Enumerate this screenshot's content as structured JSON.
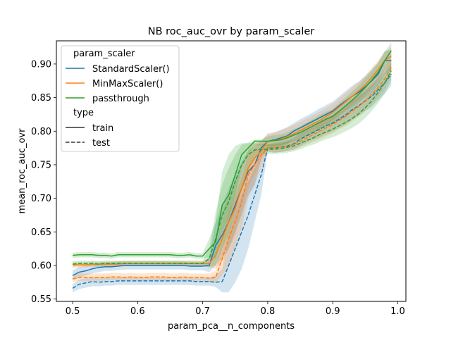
{
  "chart_data": {
    "type": "line",
    "title": "NB roc_auc_ovr by param_scaler",
    "xlabel": "param_pca__n_components",
    "ylabel": "mean_roc_auc_ovr",
    "xlim": [
      0.475,
      1.0125
    ],
    "ylim": [
      0.5465,
      0.9345
    ],
    "xticks": [
      "0.5",
      "0.6",
      "0.7",
      "0.8",
      "0.9",
      "1.0"
    ],
    "yticks": [
      "0.55",
      "0.60",
      "0.65",
      "0.70",
      "0.75",
      "0.80",
      "0.85",
      "0.90"
    ],
    "grid": false,
    "legend": {
      "placement": "upper-left",
      "hue_title": "param_scaler",
      "style_title": "type",
      "style_entries": [
        {
          "label": "train",
          "dash": "solid"
        },
        {
          "label": "test",
          "dash": "dashed"
        }
      ]
    },
    "x": [
      0.5,
      0.51,
      0.52,
      0.53,
      0.54,
      0.55,
      0.56,
      0.57,
      0.58,
      0.59,
      0.6,
      0.61,
      0.62,
      0.63,
      0.64,
      0.65,
      0.66,
      0.67,
      0.68,
      0.69,
      0.7,
      0.71,
      0.72,
      0.73,
      0.74,
      0.75,
      0.76,
      0.77,
      0.78,
      0.79,
      0.8,
      0.81,
      0.82,
      0.83,
      0.84,
      0.85,
      0.86,
      0.87,
      0.88,
      0.89,
      0.9,
      0.91,
      0.92,
      0.93,
      0.94,
      0.95,
      0.96,
      0.97,
      0.98,
      0.99
    ],
    "series": [
      {
        "name": "StandardScaler()",
        "color": "#1f77b4",
        "train": [
          0.585,
          0.59,
          0.592,
          0.595,
          0.597,
          0.598,
          0.598,
          0.599,
          0.6,
          0.6,
          0.6,
          0.6,
          0.6,
          0.6,
          0.6,
          0.6,
          0.6,
          0.6,
          0.599,
          0.599,
          0.599,
          0.6,
          0.63,
          0.645,
          0.665,
          0.69,
          0.715,
          0.74,
          0.75,
          0.775,
          0.785,
          0.787,
          0.79,
          0.793,
          0.8,
          0.805,
          0.81,
          0.815,
          0.82,
          0.825,
          0.83,
          0.838,
          0.845,
          0.852,
          0.858,
          0.866,
          0.875,
          0.885,
          0.905,
          0.905
        ],
        "train_lo": [
          0.578,
          0.582,
          0.585,
          0.588,
          0.59,
          0.592,
          0.592,
          0.593,
          0.594,
          0.594,
          0.594,
          0.594,
          0.594,
          0.594,
          0.594,
          0.594,
          0.594,
          0.594,
          0.593,
          0.593,
          0.593,
          0.59,
          0.6,
          0.61,
          0.625,
          0.65,
          0.675,
          0.705,
          0.72,
          0.76,
          0.775,
          0.776,
          0.778,
          0.781,
          0.788,
          0.792,
          0.797,
          0.802,
          0.806,
          0.811,
          0.816,
          0.823,
          0.83,
          0.836,
          0.842,
          0.85,
          0.858,
          0.868,
          0.885,
          0.89
        ],
        "train_hi": [
          0.592,
          0.598,
          0.6,
          0.602,
          0.604,
          0.605,
          0.605,
          0.606,
          0.606,
          0.606,
          0.606,
          0.606,
          0.606,
          0.606,
          0.606,
          0.606,
          0.606,
          0.606,
          0.605,
          0.605,
          0.605,
          0.612,
          0.665,
          0.69,
          0.715,
          0.735,
          0.755,
          0.77,
          0.778,
          0.785,
          0.795,
          0.798,
          0.802,
          0.806,
          0.812,
          0.818,
          0.823,
          0.828,
          0.834,
          0.839,
          0.844,
          0.852,
          0.86,
          0.868,
          0.874,
          0.882,
          0.892,
          0.902,
          0.92,
          0.92
        ],
        "test": [
          0.566,
          0.572,
          0.574,
          0.576,
          0.575,
          0.576,
          0.576,
          0.577,
          0.577,
          0.577,
          0.577,
          0.577,
          0.577,
          0.577,
          0.577,
          0.577,
          0.577,
          0.577,
          0.577,
          0.576,
          0.576,
          0.576,
          0.575,
          0.576,
          0.6,
          0.625,
          0.65,
          0.675,
          0.705,
          0.735,
          0.775,
          0.775,
          0.776,
          0.778,
          0.781,
          0.788,
          0.793,
          0.798,
          0.803,
          0.808,
          0.812,
          0.818,
          0.824,
          0.832,
          0.838,
          0.845,
          0.852,
          0.862,
          0.872,
          0.885
        ],
        "test_lo": [
          0.56,
          0.565,
          0.567,
          0.569,
          0.569,
          0.57,
          0.57,
          0.571,
          0.571,
          0.571,
          0.571,
          0.571,
          0.571,
          0.571,
          0.571,
          0.571,
          0.571,
          0.571,
          0.571,
          0.57,
          0.57,
          0.57,
          0.568,
          0.56,
          0.56,
          0.575,
          0.595,
          0.625,
          0.665,
          0.705,
          0.77,
          0.768,
          0.769,
          0.771,
          0.773,
          0.778,
          0.783,
          0.787,
          0.791,
          0.796,
          0.8,
          0.805,
          0.81,
          0.817,
          0.823,
          0.83,
          0.836,
          0.846,
          0.856,
          0.868
        ],
        "test_hi": [
          0.572,
          0.579,
          0.581,
          0.583,
          0.582,
          0.583,
          0.583,
          0.583,
          0.583,
          0.583,
          0.583,
          0.583,
          0.583,
          0.583,
          0.583,
          0.583,
          0.583,
          0.583,
          0.583,
          0.582,
          0.582,
          0.582,
          0.585,
          0.595,
          0.645,
          0.68,
          0.705,
          0.725,
          0.745,
          0.765,
          0.78,
          0.782,
          0.784,
          0.786,
          0.79,
          0.798,
          0.803,
          0.809,
          0.815,
          0.82,
          0.825,
          0.831,
          0.838,
          0.846,
          0.853,
          0.86,
          0.868,
          0.878,
          0.888,
          0.9
        ]
      },
      {
        "name": "MinMaxScaler()",
        "color": "#ff7f0e",
        "train": [
          0.601,
          0.601,
          0.601,
          0.602,
          0.602,
          0.602,
          0.602,
          0.602,
          0.603,
          0.603,
          0.603,
          0.603,
          0.603,
          0.603,
          0.603,
          0.603,
          0.603,
          0.603,
          0.603,
          0.603,
          0.603,
          0.603,
          0.615,
          0.64,
          0.665,
          0.685,
          0.715,
          0.745,
          0.76,
          0.77,
          0.785,
          0.786,
          0.788,
          0.792,
          0.796,
          0.801,
          0.806,
          0.811,
          0.816,
          0.822,
          0.828,
          0.836,
          0.844,
          0.852,
          0.86,
          0.869,
          0.88,
          0.892,
          0.905,
          0.912
        ],
        "train_lo": [
          0.597,
          0.597,
          0.597,
          0.598,
          0.598,
          0.598,
          0.598,
          0.598,
          0.599,
          0.599,
          0.599,
          0.599,
          0.599,
          0.599,
          0.599,
          0.599,
          0.599,
          0.599,
          0.599,
          0.599,
          0.599,
          0.597,
          0.595,
          0.605,
          0.625,
          0.645,
          0.68,
          0.715,
          0.735,
          0.755,
          0.773,
          0.774,
          0.776,
          0.78,
          0.784,
          0.789,
          0.794,
          0.799,
          0.804,
          0.81,
          0.815,
          0.823,
          0.831,
          0.839,
          0.847,
          0.855,
          0.866,
          0.877,
          0.89,
          0.898
        ],
        "train_hi": [
          0.605,
          0.605,
          0.605,
          0.606,
          0.606,
          0.606,
          0.606,
          0.606,
          0.607,
          0.607,
          0.607,
          0.607,
          0.607,
          0.607,
          0.607,
          0.607,
          0.607,
          0.607,
          0.607,
          0.607,
          0.607,
          0.61,
          0.64,
          0.68,
          0.705,
          0.725,
          0.75,
          0.772,
          0.782,
          0.785,
          0.797,
          0.798,
          0.801,
          0.805,
          0.809,
          0.814,
          0.819,
          0.824,
          0.829,
          0.835,
          0.841,
          0.849,
          0.857,
          0.865,
          0.873,
          0.883,
          0.894,
          0.906,
          0.918,
          0.925
        ],
        "test": [
          0.58,
          0.582,
          0.582,
          0.582,
          0.582,
          0.582,
          0.583,
          0.583,
          0.582,
          0.583,
          0.582,
          0.582,
          0.583,
          0.583,
          0.583,
          0.582,
          0.582,
          0.583,
          0.582,
          0.582,
          0.582,
          0.581,
          0.582,
          0.61,
          0.64,
          0.665,
          0.695,
          0.735,
          0.75,
          0.765,
          0.775,
          0.775,
          0.776,
          0.777,
          0.78,
          0.785,
          0.79,
          0.795,
          0.8,
          0.805,
          0.81,
          0.816,
          0.822,
          0.83,
          0.837,
          0.845,
          0.855,
          0.865,
          0.878,
          0.895
        ],
        "test_lo": [
          0.575,
          0.577,
          0.577,
          0.577,
          0.577,
          0.577,
          0.578,
          0.578,
          0.577,
          0.578,
          0.577,
          0.577,
          0.578,
          0.578,
          0.578,
          0.577,
          0.577,
          0.578,
          0.577,
          0.577,
          0.577,
          0.575,
          0.574,
          0.585,
          0.6,
          0.625,
          0.655,
          0.7,
          0.72,
          0.745,
          0.769,
          0.768,
          0.769,
          0.77,
          0.772,
          0.776,
          0.78,
          0.784,
          0.788,
          0.793,
          0.797,
          0.803,
          0.808,
          0.815,
          0.822,
          0.83,
          0.84,
          0.85,
          0.862,
          0.88
        ],
        "test_hi": [
          0.586,
          0.588,
          0.588,
          0.588,
          0.588,
          0.588,
          0.589,
          0.589,
          0.588,
          0.589,
          0.588,
          0.588,
          0.589,
          0.589,
          0.589,
          0.588,
          0.588,
          0.589,
          0.588,
          0.588,
          0.588,
          0.588,
          0.592,
          0.64,
          0.68,
          0.705,
          0.73,
          0.765,
          0.775,
          0.782,
          0.781,
          0.782,
          0.783,
          0.784,
          0.788,
          0.794,
          0.8,
          0.806,
          0.812,
          0.818,
          0.823,
          0.829,
          0.836,
          0.845,
          0.852,
          0.86,
          0.87,
          0.88,
          0.892,
          0.908
        ]
      },
      {
        "name": "passthrough",
        "color": "#2ca02c",
        "train": [
          0.615,
          0.616,
          0.616,
          0.616,
          0.615,
          0.615,
          0.614,
          0.616,
          0.616,
          0.616,
          0.616,
          0.616,
          0.616,
          0.616,
          0.616,
          0.616,
          0.615,
          0.615,
          0.616,
          0.614,
          0.614,
          0.625,
          0.635,
          0.69,
          0.705,
          0.735,
          0.765,
          0.775,
          0.785,
          0.785,
          0.785,
          0.786,
          0.787,
          0.79,
          0.794,
          0.798,
          0.803,
          0.808,
          0.813,
          0.818,
          0.822,
          0.83,
          0.838,
          0.846,
          0.855,
          0.865,
          0.876,
          0.888,
          0.905,
          0.92
        ],
        "train_lo": [
          0.611,
          0.612,
          0.612,
          0.612,
          0.611,
          0.611,
          0.61,
          0.612,
          0.612,
          0.612,
          0.612,
          0.612,
          0.612,
          0.612,
          0.612,
          0.612,
          0.611,
          0.611,
          0.612,
          0.61,
          0.61,
          0.612,
          0.61,
          0.65,
          0.67,
          0.705,
          0.745,
          0.765,
          0.778,
          0.78,
          0.778,
          0.778,
          0.779,
          0.782,
          0.785,
          0.789,
          0.793,
          0.798,
          0.802,
          0.807,
          0.811,
          0.818,
          0.826,
          0.833,
          0.842,
          0.851,
          0.862,
          0.874,
          0.89,
          0.905
        ],
        "train_hi": [
          0.619,
          0.62,
          0.62,
          0.62,
          0.619,
          0.619,
          0.618,
          0.62,
          0.62,
          0.62,
          0.62,
          0.62,
          0.62,
          0.62,
          0.62,
          0.62,
          0.619,
          0.619,
          0.62,
          0.618,
          0.618,
          0.64,
          0.665,
          0.74,
          0.765,
          0.778,
          0.782,
          0.783,
          0.787,
          0.788,
          0.792,
          0.794,
          0.795,
          0.798,
          0.803,
          0.807,
          0.813,
          0.818,
          0.824,
          0.829,
          0.833,
          0.842,
          0.85,
          0.859,
          0.868,
          0.879,
          0.89,
          0.902,
          0.918,
          0.932
        ],
        "test": [
          0.602,
          0.603,
          0.603,
          0.603,
          0.602,
          0.603,
          0.603,
          0.603,
          0.603,
          0.603,
          0.603,
          0.603,
          0.603,
          0.603,
          0.603,
          0.603,
          0.603,
          0.603,
          0.603,
          0.603,
          0.603,
          0.61,
          0.64,
          0.675,
          0.695,
          0.725,
          0.75,
          0.765,
          0.772,
          0.773,
          0.773,
          0.773,
          0.774,
          0.776,
          0.778,
          0.782,
          0.786,
          0.79,
          0.795,
          0.799,
          0.803,
          0.808,
          0.813,
          0.819,
          0.826,
          0.835,
          0.845,
          0.858,
          0.872,
          0.89
        ],
        "test_lo": [
          0.598,
          0.599,
          0.599,
          0.599,
          0.598,
          0.599,
          0.599,
          0.599,
          0.599,
          0.599,
          0.599,
          0.599,
          0.599,
          0.599,
          0.599,
          0.599,
          0.599,
          0.599,
          0.599,
          0.599,
          0.599,
          0.597,
          0.6,
          0.625,
          0.645,
          0.68,
          0.715,
          0.745,
          0.76,
          0.766,
          0.766,
          0.766,
          0.767,
          0.768,
          0.77,
          0.773,
          0.777,
          0.78,
          0.784,
          0.788,
          0.791,
          0.795,
          0.8,
          0.805,
          0.811,
          0.82,
          0.83,
          0.842,
          0.856,
          0.875
        ],
        "test_hi": [
          0.606,
          0.607,
          0.607,
          0.607,
          0.606,
          0.607,
          0.607,
          0.607,
          0.607,
          0.607,
          0.607,
          0.607,
          0.607,
          0.607,
          0.607,
          0.607,
          0.607,
          0.607,
          0.607,
          0.607,
          0.607,
          0.625,
          0.68,
          0.72,
          0.745,
          0.765,
          0.78,
          0.782,
          0.782,
          0.781,
          0.78,
          0.78,
          0.781,
          0.784,
          0.787,
          0.791,
          0.796,
          0.801,
          0.806,
          0.811,
          0.815,
          0.821,
          0.827,
          0.834,
          0.841,
          0.85,
          0.86,
          0.873,
          0.887,
          0.904
        ]
      }
    ]
  }
}
